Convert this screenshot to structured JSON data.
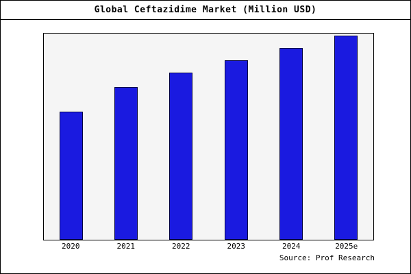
{
  "chart_data": {
    "type": "bar",
    "title": "Global Ceftazidime Market (Million USD)",
    "categories": [
      "2020",
      "2021",
      "2022",
      "2023",
      "2024",
      "2025e"
    ],
    "values": [
      62,
      74,
      81,
      87,
      93,
      99
    ],
    "xlabel": "",
    "ylabel": "",
    "ylim": [
      0,
      100
    ],
    "grid": false,
    "legend": "none",
    "value_note": "no y-axis labels shown; values estimated as percent of plot height"
  },
  "source": {
    "label": "Source: Prof Research"
  },
  "colors": {
    "bar_fill": "#1a1ae0",
    "bar_border": "#000040",
    "plot_bg": "#f5f5f5",
    "frame_border": "#000000"
  }
}
